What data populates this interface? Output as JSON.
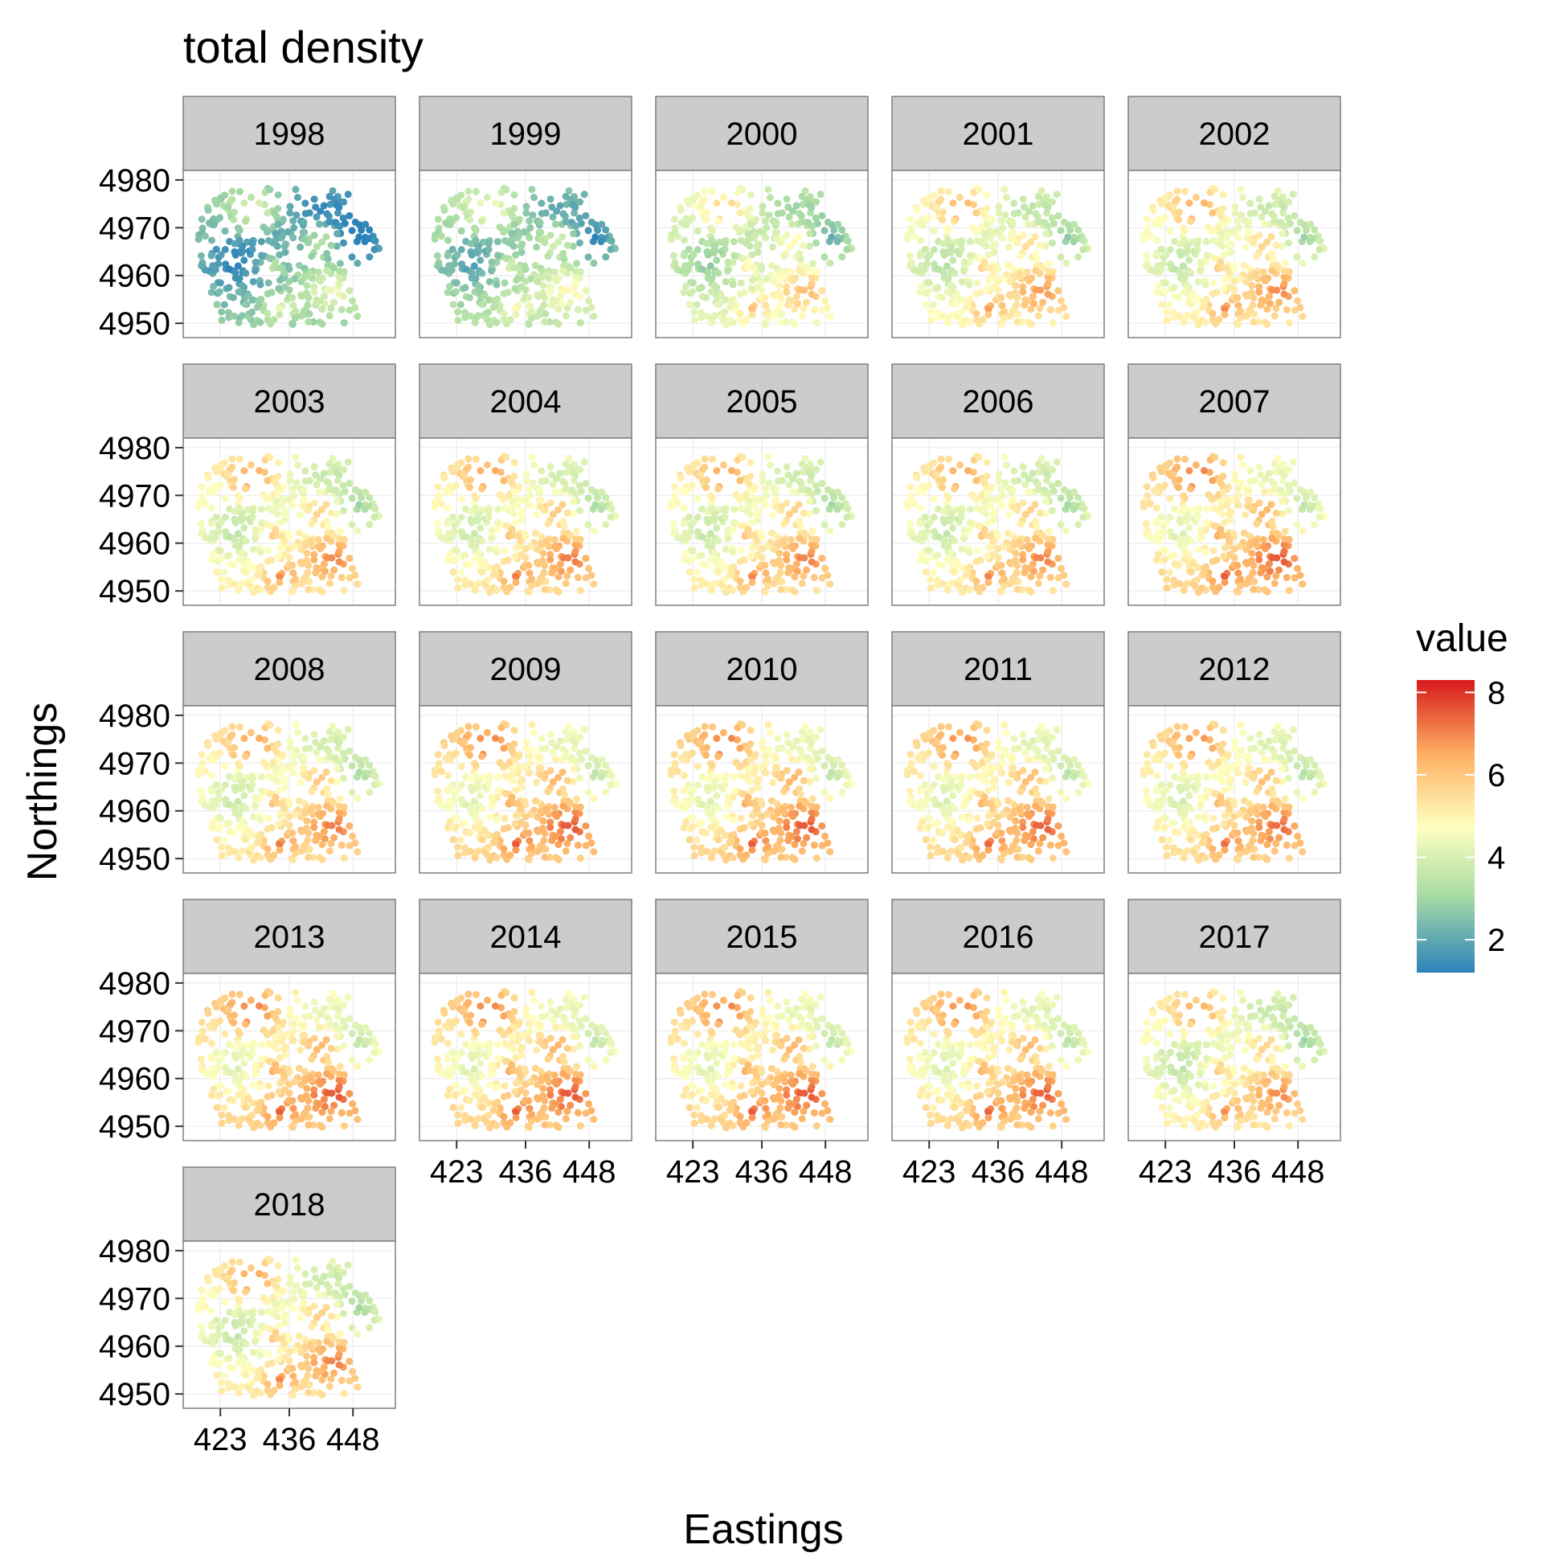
{
  "chart_data": {
    "type": "scatter",
    "title": "total density",
    "xlabel": "Eastings",
    "ylabel": "Northings",
    "panels": [
      "1998",
      "1999",
      "2000",
      "2001",
      "2002",
      "2003",
      "2004",
      "2005",
      "2006",
      "2007",
      "2008",
      "2009",
      "2010",
      "2011",
      "2012",
      "2013",
      "2014",
      "2015",
      "2016",
      "2017",
      "2018"
    ],
    "x_ticks": [
      423,
      436,
      448
    ],
    "y_ticks": [
      4950,
      4960,
      4970,
      4980
    ],
    "xlim": [
      416,
      456
    ],
    "ylim": [
      4947,
      4982
    ],
    "grid": true,
    "legend": {
      "title": "value",
      "placement": "right",
      "ticks": [
        2,
        4,
        6,
        8
      ],
      "range": [
        1.2,
        8.3
      ],
      "palette": [
        "#2b83ba",
        "#abdda4",
        "#ffffbf",
        "#fdae61",
        "#d7191c"
      ]
    },
    "panel_mean_values": {
      "1998": 2.6,
      "1999": 3.2,
      "2000": 4.2,
      "2001": 4.8,
      "2002": 5.0,
      "2003": 5.0,
      "2004": 5.2,
      "2005": 5.1,
      "2006": 5.1,
      "2007": 5.6,
      "2008": 5.2,
      "2009": 5.6,
      "2010": 5.6,
      "2011": 5.5,
      "2012": 5.4,
      "2013": 5.6,
      "2014": 5.6,
      "2015": 5.6,
      "2016": 5.5,
      "2017": 5.0,
      "2018": 5.1
    }
  }
}
